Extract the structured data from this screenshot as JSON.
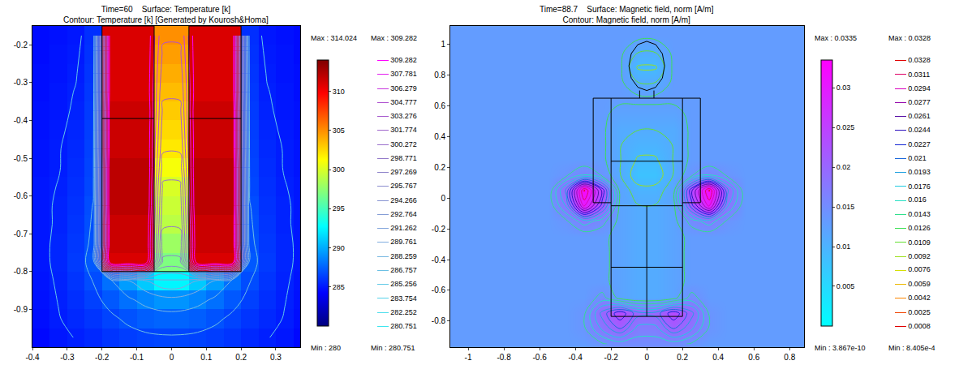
{
  "chart_data": [
    {
      "type": "heatmap",
      "title": "Time=60    Surface: Temperature [k]",
      "subtitle": "Contour: Temperature [k] [Generated by Kourosh&Homa]",
      "xlim": [
        -0.4,
        0.37
      ],
      "xticks": [
        -0.4,
        -0.3,
        -0.2,
        -0.1,
        0,
        0.1,
        0.2,
        0.3
      ],
      "ylim": [
        -1.0,
        -0.15
      ],
      "yticks": [
        -0.9,
        -0.8,
        -0.7,
        -0.6,
        -0.5,
        -0.4,
        -0.3,
        -0.2
      ],
      "x": [
        -0.375,
        -0.325,
        -0.275,
        -0.225,
        -0.175,
        -0.125,
        -0.075,
        -0.025,
        0.025,
        0.075,
        0.125,
        0.175,
        0.225,
        0.275,
        0.325,
        0.375
      ],
      "y": [
        -0.975,
        -0.925,
        -0.875,
        -0.825,
        -0.775,
        -0.725,
        -0.675,
        -0.625,
        -0.575,
        -0.525,
        -0.475,
        -0.425,
        -0.375,
        -0.325,
        -0.275,
        -0.225,
        -0.175
      ],
      "z": [
        [
          284.5,
          285,
          285.3,
          285.6,
          286,
          286.3,
          286.5,
          286.6,
          286.6,
          286.5,
          286.3,
          286,
          285.6,
          285.3,
          285,
          284.5
        ],
        [
          284.7,
          285.2,
          285.6,
          286,
          286.5,
          287,
          287.4,
          287.6,
          287.6,
          287.4,
          287,
          286.5,
          286,
          285.6,
          285.2,
          284.7
        ],
        [
          284.8,
          285.3,
          285.8,
          286.4,
          287.2,
          288,
          288.7,
          289.2,
          289.2,
          288.7,
          288,
          287.2,
          286.4,
          285.8,
          285.3,
          284.8
        ],
        [
          284.9,
          285.4,
          286,
          286.8,
          288,
          289.5,
          291,
          292.5,
          292.5,
          291,
          289.5,
          288,
          286.8,
          286,
          285.4,
          284.9
        ],
        [
          285,
          285.5,
          286.2,
          287.2,
          311,
          311,
          311,
          297,
          297,
          311,
          311,
          311,
          287.2,
          286.2,
          285.5,
          285
        ],
        [
          285,
          285.5,
          286.1,
          287,
          311.5,
          311.5,
          311.5,
          298,
          298,
          311.5,
          311.5,
          311.5,
          287,
          286.1,
          285.5,
          285
        ],
        [
          285,
          285.4,
          286,
          286.9,
          311.5,
          311.5,
          311.5,
          299,
          299,
          311.5,
          311.5,
          311.5,
          286.9,
          286,
          285.4,
          285
        ],
        [
          285,
          285.4,
          285.9,
          286.8,
          312,
          312,
          312,
          299.5,
          299.5,
          312,
          312,
          312,
          286.8,
          285.9,
          285.4,
          285
        ],
        [
          285,
          285.3,
          285.8,
          286.6,
          312,
          312,
          312,
          300,
          300,
          312,
          312,
          312,
          286.6,
          285.8,
          285.3,
          285
        ],
        [
          284.9,
          285.2,
          285.7,
          286.5,
          312,
          312,
          312,
          301,
          301,
          312,
          312,
          312,
          286.5,
          285.7,
          285.2,
          284.9
        ],
        [
          284.9,
          285.2,
          285.6,
          286.4,
          311.5,
          311.5,
          311.5,
          302,
          302,
          311.5,
          311.5,
          311.5,
          286.4,
          285.6,
          285.2,
          284.9
        ],
        [
          284.8,
          285.1,
          285.5,
          286.3,
          311.5,
          311.5,
          311.5,
          302.5,
          302.5,
          311.5,
          311.5,
          311.5,
          286.3,
          285.5,
          285.1,
          284.8
        ],
        [
          284.8,
          285,
          285.4,
          286.2,
          311.5,
          311.5,
          311.5,
          303,
          303,
          311.5,
          311.5,
          311.5,
          286.2,
          285.4,
          285,
          284.8
        ],
        [
          284.7,
          285,
          285.3,
          286.1,
          311,
          311,
          311,
          303.5,
          303.5,
          311,
          311,
          311,
          286.1,
          285.3,
          285,
          284.7
        ],
        [
          284.7,
          284.9,
          285.2,
          286,
          311,
          311,
          311,
          304,
          304,
          311,
          311,
          311,
          286,
          285.2,
          284.9,
          284.7
        ],
        [
          284.6,
          284.9,
          285.1,
          285.9,
          311,
          311,
          311,
          304.5,
          304.5,
          311,
          311,
          311,
          285.9,
          285.1,
          284.9,
          284.6
        ],
        [
          284.6,
          284.8,
          285,
          285.8,
          311,
          311,
          311,
          305,
          305,
          311,
          311,
          311,
          285.8,
          285,
          284.8,
          284.6
        ]
      ],
      "colorbar": {
        "range": [
          280,
          314.024
        ],
        "ticks": [
          285,
          290,
          295,
          300,
          305,
          310
        ],
        "max_label": "Max : 314.024",
        "min_label": "Min : 280"
      },
      "contours": {
        "levels": [
          280.751,
          282.252,
          283.754,
          285.256,
          286.757,
          288.259,
          289.761,
          291.262,
          292.764,
          294.266,
          295.767,
          297.269,
          298.771,
          300.272,
          301.774,
          303.276,
          304.777,
          306.279,
          307.781,
          309.282
        ],
        "max_label": "Max : 309.282",
        "min_label": "Min : 280.751"
      },
      "outlines": [
        {
          "x": [
            -0.2,
            -0.05,
            -0.05,
            -0.2,
            -0.2
          ],
          "y": [
            -0.15,
            -0.15,
            -0.8,
            -0.8,
            -0.15
          ]
        },
        {
          "x": [
            0.05,
            0.2,
            0.2,
            0.05,
            0.05
          ],
          "y": [
            -0.15,
            -0.15,
            -0.8,
            -0.8,
            -0.15
          ]
        },
        {
          "x": [
            -0.2,
            -0.05
          ],
          "y": [
            -0.395,
            -0.395
          ]
        },
        {
          "x": [
            0.05,
            0.2
          ],
          "y": [
            -0.395,
            -0.395
          ]
        },
        {
          "x": [
            -0.05,
            0.05
          ],
          "y": [
            -0.8,
            -0.8
          ]
        }
      ]
    },
    {
      "type": "heatmap",
      "title": "Time=88.7    Surface: Magnetic field, norm [A/m]",
      "subtitle": "Contour: Magnetic field, norm [A/m]",
      "xlim": [
        -1.1,
        0.88
      ],
      "xticks": [
        -1,
        -0.8,
        -0.6,
        -0.4,
        -0.2,
        0,
        0.2,
        0.4,
        0.6,
        0.8
      ],
      "ylim": [
        -0.97,
        1.12
      ],
      "yticks": [
        -0.8,
        -0.6,
        -0.4,
        -0.2,
        0,
        0.2,
        0.4,
        0.6,
        0.8,
        1
      ],
      "x": [
        -1.05,
        -0.95,
        -0.85,
        -0.75,
        -0.65,
        -0.55,
        -0.45,
        -0.35,
        -0.25,
        -0.15,
        -0.05,
        0.05,
        0.15,
        0.25,
        0.35,
        0.45,
        0.55,
        0.65,
        0.75,
        0.85
      ],
      "y": [
        -0.95,
        -0.85,
        -0.75,
        -0.65,
        -0.55,
        -0.45,
        -0.35,
        -0.25,
        -0.15,
        -0.05,
        0.05,
        0.15,
        0.25,
        0.35,
        0.45,
        0.55,
        0.65,
        0.75,
        0.85,
        0.95,
        1.05,
        1.15
      ],
      "z": [
        [
          0.013,
          0.013,
          0.013,
          0.013,
          0.013,
          0.013,
          0.013,
          0.013,
          0.014,
          0.015,
          0.015,
          0.015,
          0.015,
          0.014,
          0.013,
          0.013,
          0.013,
          0.013,
          0.013,
          0.013
        ],
        [
          0.013,
          0.013,
          0.013,
          0.013,
          0.013,
          0.013,
          0.013,
          0.014,
          0.018,
          0.021,
          0.017,
          0.017,
          0.021,
          0.018,
          0.014,
          0.013,
          0.013,
          0.013,
          0.013,
          0.013
        ],
        [
          0.013,
          0.013,
          0.013,
          0.013,
          0.013,
          0.013,
          0.013,
          0.014,
          0.02,
          0.024,
          0.02,
          0.02,
          0.024,
          0.02,
          0.014,
          0.013,
          0.013,
          0.013,
          0.013,
          0.013
        ],
        [
          0.013,
          0.013,
          0.013,
          0.013,
          0.013,
          0.013,
          0.013,
          0.013,
          0.015,
          0.012,
          0.011,
          0.011,
          0.012,
          0.015,
          0.013,
          0.013,
          0.013,
          0.013,
          0.013,
          0.013
        ],
        [
          0.013,
          0.013,
          0.013,
          0.013,
          0.013,
          0.013,
          0.013,
          0.013,
          0.013,
          0.012,
          0.011,
          0.011,
          0.012,
          0.013,
          0.013,
          0.013,
          0.013,
          0.013,
          0.013,
          0.013
        ],
        [
          0.013,
          0.013,
          0.013,
          0.013,
          0.013,
          0.013,
          0.013,
          0.013,
          0.013,
          0.012,
          0.011,
          0.011,
          0.012,
          0.013,
          0.013,
          0.013,
          0.013,
          0.013,
          0.013,
          0.013
        ],
        [
          0.013,
          0.013,
          0.013,
          0.013,
          0.013,
          0.013,
          0.013,
          0.013,
          0.013,
          0.012,
          0.011,
          0.011,
          0.012,
          0.013,
          0.013,
          0.013,
          0.013,
          0.013,
          0.013,
          0.013
        ],
        [
          0.013,
          0.013,
          0.013,
          0.013,
          0.013,
          0.013,
          0.013,
          0.013,
          0.013,
          0.012,
          0.011,
          0.011,
          0.012,
          0.013,
          0.013,
          0.013,
          0.013,
          0.013,
          0.013,
          0.013
        ],
        [
          0.013,
          0.013,
          0.013,
          0.013,
          0.013,
          0.013,
          0.014,
          0.017,
          0.015,
          0.012,
          0.011,
          0.011,
          0.012,
          0.015,
          0.017,
          0.014,
          0.013,
          0.013,
          0.013,
          0.013
        ],
        [
          0.013,
          0.013,
          0.013,
          0.013,
          0.013,
          0.013,
          0.018,
          0.03,
          0.022,
          0.012,
          0.011,
          0.011,
          0.012,
          0.022,
          0.03,
          0.018,
          0.013,
          0.013,
          0.013,
          0.013
        ],
        [
          0.013,
          0.013,
          0.013,
          0.013,
          0.013,
          0.013,
          0.02,
          0.033,
          0.024,
          0.012,
          0.01,
          0.01,
          0.012,
          0.024,
          0.033,
          0.02,
          0.013,
          0.013,
          0.013,
          0.013
        ],
        [
          0.013,
          0.013,
          0.013,
          0.013,
          0.013,
          0.013,
          0.014,
          0.016,
          0.014,
          0.011,
          0.008,
          0.008,
          0.011,
          0.014,
          0.016,
          0.014,
          0.013,
          0.013,
          0.013,
          0.013
        ],
        [
          0.013,
          0.013,
          0.013,
          0.013,
          0.013,
          0.013,
          0.013,
          0.013,
          0.013,
          0.011,
          0.009,
          0.009,
          0.011,
          0.013,
          0.013,
          0.013,
          0.013,
          0.013,
          0.013,
          0.013
        ],
        [
          0.013,
          0.013,
          0.013,
          0.013,
          0.013,
          0.013,
          0.013,
          0.013,
          0.013,
          0.011,
          0.01,
          0.01,
          0.011,
          0.013,
          0.013,
          0.013,
          0.013,
          0.013,
          0.013,
          0.013
        ],
        [
          0.013,
          0.013,
          0.013,
          0.013,
          0.013,
          0.013,
          0.013,
          0.013,
          0.013,
          0.011,
          0.011,
          0.011,
          0.011,
          0.013,
          0.013,
          0.013,
          0.013,
          0.013,
          0.013,
          0.013
        ],
        [
          0.013,
          0.013,
          0.013,
          0.013,
          0.013,
          0.013,
          0.013,
          0.013,
          0.013,
          0.012,
          0.012,
          0.012,
          0.012,
          0.013,
          0.013,
          0.013,
          0.013,
          0.013,
          0.013,
          0.013
        ],
        [
          0.013,
          0.013,
          0.013,
          0.013,
          0.013,
          0.013,
          0.013,
          0.013,
          0.013,
          0.013,
          0.013,
          0.013,
          0.013,
          0.013,
          0.013,
          0.013,
          0.013,
          0.013,
          0.013,
          0.013
        ],
        [
          0.013,
          0.013,
          0.013,
          0.013,
          0.013,
          0.013,
          0.013,
          0.013,
          0.013,
          0.013,
          0.011,
          0.011,
          0.013,
          0.013,
          0.013,
          0.013,
          0.013,
          0.013,
          0.013,
          0.013
        ],
        [
          0.013,
          0.013,
          0.013,
          0.013,
          0.013,
          0.013,
          0.013,
          0.013,
          0.013,
          0.013,
          0.009,
          0.009,
          0.013,
          0.013,
          0.013,
          0.013,
          0.013,
          0.013,
          0.013,
          0.013
        ],
        [
          0.013,
          0.013,
          0.013,
          0.013,
          0.013,
          0.013,
          0.013,
          0.013,
          0.013,
          0.013,
          0.011,
          0.011,
          0.013,
          0.013,
          0.013,
          0.013,
          0.013,
          0.013,
          0.013,
          0.013
        ],
        [
          0.013,
          0.013,
          0.013,
          0.013,
          0.013,
          0.013,
          0.013,
          0.013,
          0.013,
          0.013,
          0.013,
          0.013,
          0.013,
          0.013,
          0.013,
          0.013,
          0.013,
          0.013,
          0.013,
          0.013
        ],
        [
          0.013,
          0.013,
          0.013,
          0.013,
          0.013,
          0.013,
          0.013,
          0.013,
          0.013,
          0.013,
          0.013,
          0.013,
          0.013,
          0.013,
          0.013,
          0.013,
          0.013,
          0.013,
          0.013,
          0.013
        ]
      ],
      "colorbar": {
        "range": [
          3.867e-10,
          0.0335
        ],
        "ticks": [
          0.005,
          0.01,
          0.015,
          0.02,
          0.025,
          0.03
        ],
        "max_label": "Max : 0.0335",
        "min_label": "Min : 3.867e-10"
      },
      "contours": {
        "levels": [
          0.0008,
          0.0025,
          0.0042,
          0.0059,
          0.0076,
          0.0092,
          0.0109,
          0.0126,
          0.0143,
          0.016,
          0.0176,
          0.0193,
          0.021,
          0.0227,
          0.0244,
          0.0261,
          0.0277,
          0.0294,
          0.0311,
          0.0328
        ],
        "max_label": "Max : 0.0328",
        "min_label": "Min : 8.405e-4"
      },
      "outlines": [
        {
          "x": [
            0.1,
            0.087,
            0.05,
            0,
            -0.05,
            -0.087,
            -0.1,
            -0.087,
            -0.05,
            0,
            0.05,
            0.087,
            0.1
          ],
          "y": [
            0.86,
            0.94,
            0.999,
            1.02,
            0.999,
            0.94,
            0.86,
            0.78,
            0.721,
            0.7,
            0.721,
            0.78,
            0.86
          ]
        },
        {
          "x": [
            -0.04,
            -0.04
          ],
          "y": [
            0.7,
            0.65
          ]
        },
        {
          "x": [
            0.04,
            0.04
          ],
          "y": [
            0.7,
            0.65
          ]
        },
        {
          "x": [
            -0.2,
            0.2,
            0.2,
            -0.2,
            -0.2
          ],
          "y": [
            0.65,
            0.65,
            -0.05,
            -0.05,
            0.65
          ]
        },
        {
          "x": [
            -0.2,
            0.2
          ],
          "y": [
            0.24,
            0.24
          ]
        },
        {
          "x": [
            -0.2,
            -0.3,
            -0.3,
            -0.2
          ],
          "y": [
            0.65,
            0.65,
            -0.03,
            -0.03
          ]
        },
        {
          "x": [
            0.2,
            0.3,
            0.3,
            0.2
          ],
          "y": [
            0.65,
            0.65,
            -0.03,
            -0.03
          ]
        },
        {
          "x": [
            -0.2,
            -0.2,
            0.2,
            0.2
          ],
          "y": [
            -0.05,
            -0.77,
            -0.77,
            -0.05
          ]
        },
        {
          "x": [
            0,
            0
          ],
          "y": [
            -0.05,
            -0.77
          ]
        },
        {
          "x": [
            -0.2,
            0.2
          ],
          "y": [
            -0.45,
            -0.45
          ]
        }
      ]
    }
  ]
}
